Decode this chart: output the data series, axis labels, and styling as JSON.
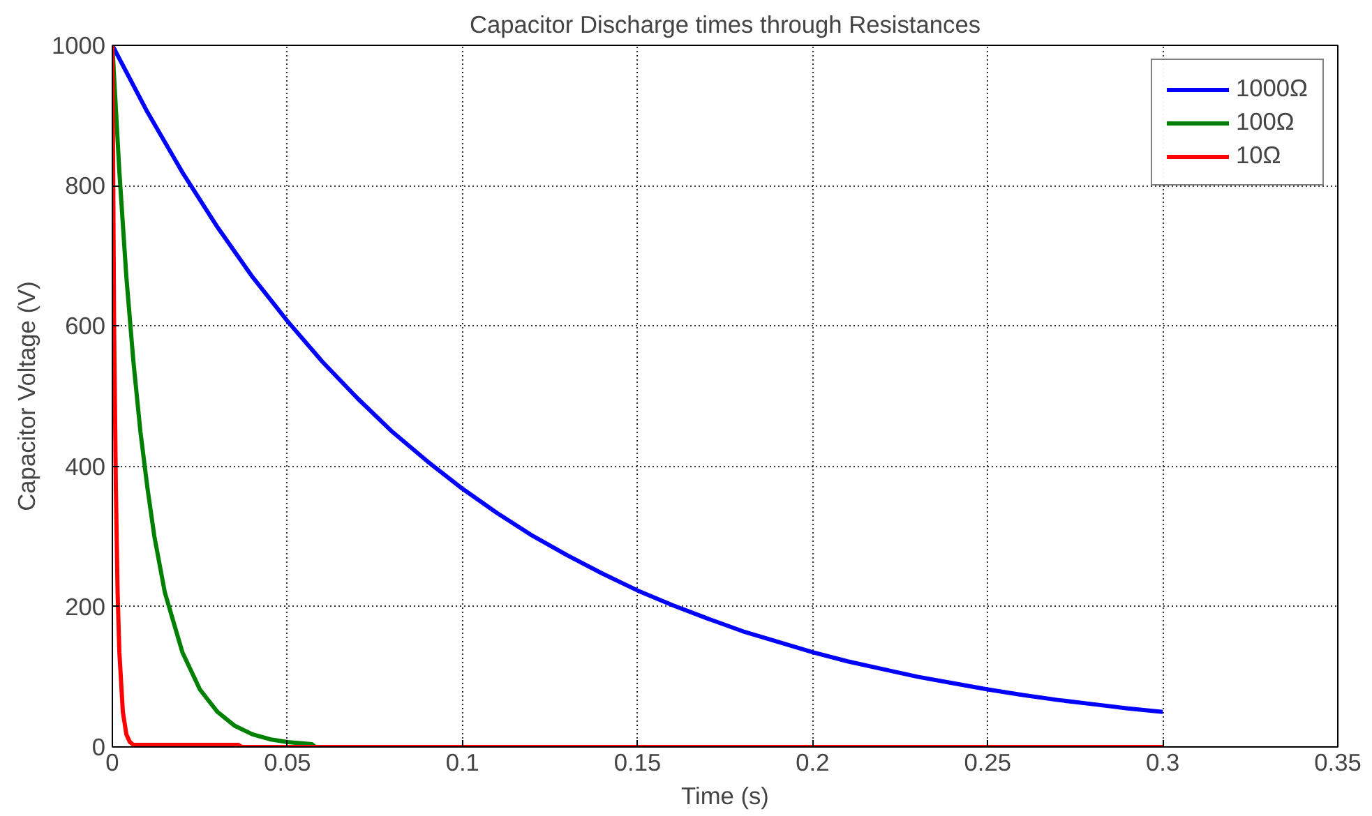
{
  "chart_data": {
    "type": "line",
    "title": "Capacitor Discharge times through Resistances",
    "xlabel": "Time (s)",
    "ylabel": "Capacitor Voltage (V)",
    "xlim": [
      0,
      0.35
    ],
    "ylim": [
      0,
      1000
    ],
    "xticks": [
      0,
      0.05,
      0.1,
      0.15,
      0.2,
      0.25,
      0.3,
      0.35
    ],
    "yticks": [
      0,
      200,
      400,
      600,
      800,
      1000
    ],
    "grid": true,
    "legend": "top right",
    "line_style": "solid",
    "series": [
      {
        "name": "1000Ω",
        "color": "#0000ff",
        "x": [
          0,
          0.01,
          0.02,
          0.03,
          0.04,
          0.05,
          0.06,
          0.07,
          0.08,
          0.09,
          0.1,
          0.11,
          0.12,
          0.13,
          0.14,
          0.15,
          0.16,
          0.17,
          0.18,
          0.19,
          0.2,
          0.21,
          0.22,
          0.23,
          0.24,
          0.25,
          0.26,
          0.27,
          0.28,
          0.29,
          0.3
        ],
        "values": [
          1000,
          905,
          819,
          741,
          670,
          607,
          549,
          497,
          449,
          407,
          368,
          333,
          301,
          273,
          247,
          223,
          202,
          183,
          165,
          150,
          135,
          122,
          111,
          100,
          91,
          82,
          74,
          67,
          61,
          55,
          50
        ]
      },
      {
        "name": "100Ω",
        "color": "#008000",
        "x": [
          0,
          0.002,
          0.004,
          0.006,
          0.008,
          0.01,
          0.012,
          0.015,
          0.02,
          0.025,
          0.03,
          0.035,
          0.04,
          0.045,
          0.05,
          0.057,
          0.058
        ],
        "values": [
          1000,
          820,
          670,
          550,
          450,
          370,
          300,
          220,
          135,
          82,
          50,
          30,
          18,
          11,
          7,
          4,
          0
        ]
      },
      {
        "name": "10Ω",
        "color": "#ff0000",
        "x": [
          0,
          0.0005,
          0.001,
          0.0015,
          0.002,
          0.003,
          0.004,
          0.005,
          0.006,
          0.036,
          0.037,
          0.3
        ],
        "values": [
          1000,
          600,
          370,
          220,
          135,
          50,
          18,
          7,
          3,
          3,
          0,
          0
        ]
      }
    ]
  }
}
